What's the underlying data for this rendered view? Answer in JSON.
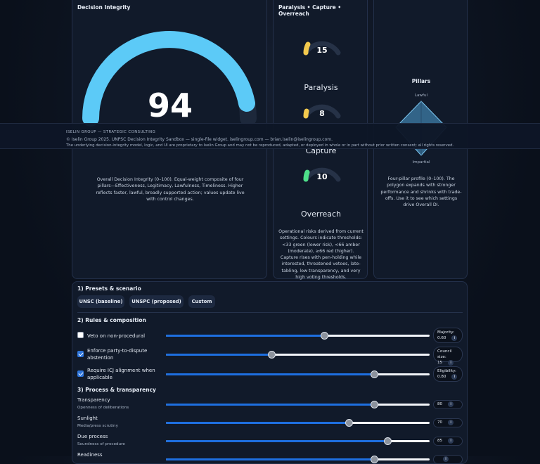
{
  "integrity": {
    "title": "Decision Integrity",
    "score": "94",
    "description": "Overall Decision Integrity (0–100). Equal-weight composite of four pillars—Effectiveness, Legitimacy, Lawfulness, Timeliness. Higher reflects faster, lawful, broadly supported action; values update live with control changes."
  },
  "risks": {
    "title": "Paralysis • Capture • Overreach",
    "gauges": [
      {
        "value": "15",
        "label": "Paralysis"
      },
      {
        "value": "8",
        "label": "Capture"
      },
      {
        "value": "10",
        "label": "Overreach"
      }
    ],
    "description": "Operational risks derived from current settings. Colours indicate thresholds: <33 green (lower risk), <66 amber (moderate), ≥66 red (higher). Capture rises with pen-holding while interested, threatened vetoes, late-tabling, low transparency, and very high voting thresholds."
  },
  "pillars": {
    "title": "Pillars",
    "top_label": "Lawful",
    "bottom_label": "Impartial",
    "description": "Four-pillar profile (0–100). The polygon expands with stronger performance and shrinks with trade-offs. Use it to see which settings drive Overall DI."
  },
  "banner": {
    "brand": "ISELIN GROUP — STRATEGIC CONSULTING",
    "copyright": "© Iselin Group 2025. UNPSC Decision Integrity Sandbox — single-file widget. iselingroup.com — brian.iselin@iselingroup.com.",
    "notice": "The underlying decision-integrity model, logic, and UI are proprietary to Iselin Group and may not be reproduced, adapted, or deployed in whole or in part without prior written consent; all rights reserved."
  },
  "controls": {
    "presets": {
      "title": "1) Presets & scenario",
      "buttons": [
        "UNSC (baseline)",
        "UNSPC (proposed)",
        "Custom"
      ]
    },
    "rules": {
      "title": "2) Rules & composition",
      "info": "i",
      "rows": [
        {
          "label": "Veto on non-procedural",
          "checked": false,
          "setting": "Majority:",
          "value": "0.60"
        },
        {
          "label": "Enforce party-to-dispute abstention",
          "checked": true,
          "setting": "Council size:",
          "value": "15"
        },
        {
          "label": "Require ICJ alignment when applicable",
          "checked": true,
          "setting": "Eligibility:",
          "value": "0.80"
        }
      ]
    },
    "process": {
      "title": "3) Process & transparency",
      "rows": [
        {
          "label": "Transparency",
          "sub": "Openness of deliberations",
          "value": "80"
        },
        {
          "label": "Sunlight",
          "sub": "Media/press scrutiny",
          "value": "70"
        },
        {
          "label": "Due process",
          "sub": "Soundness of procedure",
          "value": "85"
        },
        {
          "label": "Readiness"
        }
      ]
    }
  }
}
